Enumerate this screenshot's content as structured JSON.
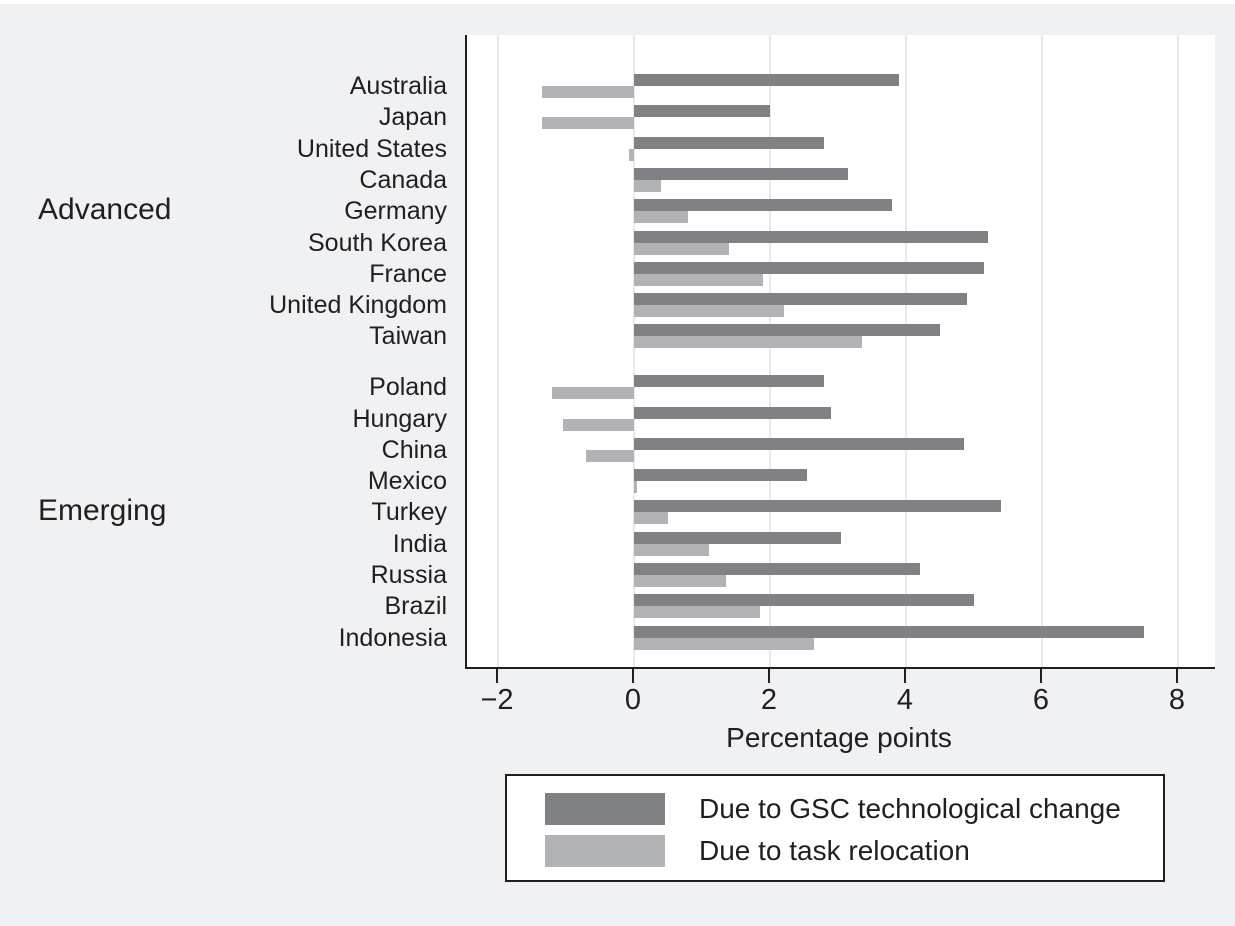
{
  "page": {
    "background": "#eff1f2"
  },
  "chart_data": {
    "type": "bar",
    "orientation": "horizontal",
    "xlabel": "Percentage points",
    "x_ticks": [
      "−2",
      "0",
      "2",
      "4",
      "6",
      "8"
    ],
    "x_tick_values": [
      -2,
      0,
      2,
      4,
      6,
      8
    ],
    "xlim": [
      -2.46,
      8.54
    ],
    "grid": "vertical",
    "plot_background": "#ffffff",
    "gridline_color": "#e7e9ea",
    "legend_position": "bottom",
    "series": [
      {
        "name": "Due to GSC technological change",
        "key": "gsc",
        "color": "#7f8184"
      },
      {
        "name": "Due to task relocation",
        "key": "relocation",
        "color": "#b1b3b6"
      }
    ],
    "groups": [
      {
        "label": "Advanced",
        "countries": [
          {
            "label": "Australia",
            "gsc": 3.9,
            "relocation": -1.35
          },
          {
            "label": "Japan",
            "gsc": 2.0,
            "relocation": -1.35
          },
          {
            "label": "United States",
            "gsc": 2.8,
            "relocation": -0.07
          },
          {
            "label": "Canada",
            "gsc": 3.15,
            "relocation": 0.4
          },
          {
            "label": "Germany",
            "gsc": 3.8,
            "relocation": 0.8
          },
          {
            "label": "South Korea",
            "gsc": 5.2,
            "relocation": 1.4
          },
          {
            "label": "France",
            "gsc": 5.15,
            "relocation": 1.9
          },
          {
            "label": "United Kingdom",
            "gsc": 4.9,
            "relocation": 2.2
          },
          {
            "label": "Taiwan",
            "gsc": 4.5,
            "relocation": 3.35
          }
        ]
      },
      {
        "label": "Emerging",
        "countries": [
          {
            "label": "Poland",
            "gsc": 2.8,
            "relocation": -1.2
          },
          {
            "label": "Hungary",
            "gsc": 2.9,
            "relocation": -1.05
          },
          {
            "label": "China",
            "gsc": 4.85,
            "relocation": -0.7
          },
          {
            "label": "Mexico",
            "gsc": 2.55,
            "relocation": 0.05
          },
          {
            "label": "Turkey",
            "gsc": 5.4,
            "relocation": 0.5
          },
          {
            "label": "India",
            "gsc": 3.05,
            "relocation": 1.1
          },
          {
            "label": "Russia",
            "gsc": 4.2,
            "relocation": 1.35
          },
          {
            "label": "Brazil",
            "gsc": 5.0,
            "relocation": 1.85
          },
          {
            "label": "Indonesia",
            "gsc": 7.5,
            "relocation": 2.65
          }
        ]
      }
    ]
  },
  "legend": {
    "items": [
      {
        "label": "Due to GSC technological change"
      },
      {
        "label": "Due to task relocation"
      }
    ]
  }
}
